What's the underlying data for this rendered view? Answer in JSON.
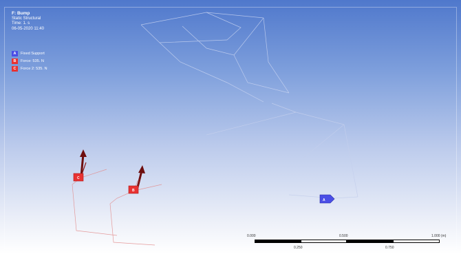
{
  "info": {
    "title": "F: Bump",
    "analysis_type": "Static Structural",
    "time": "Time: 1. s",
    "date": "06-05-2020 11:40"
  },
  "legend": {
    "items": [
      {
        "letter": "A",
        "label": "Fixed Support",
        "color": "#4a4ee6"
      },
      {
        "letter": "B",
        "label": "Force: 535. N",
        "color": "#e83232"
      },
      {
        "letter": "C",
        "label": "Force 2: 535. N",
        "color": "#e83232"
      }
    ]
  },
  "markers": {
    "c": "C",
    "b": "B",
    "a": "A"
  },
  "scale": {
    "top_labels": [
      "0.000",
      "0.500",
      "1.000 (m)"
    ],
    "bottom_labels": [
      "0.250",
      "0.750"
    ]
  },
  "colors": {
    "force_arrow": "#7a1010",
    "force_marker": "#e83232",
    "support_marker": "#4a4ee6",
    "wireframe_light": "#c8d4f0",
    "wireframe_red": "#e07a7a"
  }
}
